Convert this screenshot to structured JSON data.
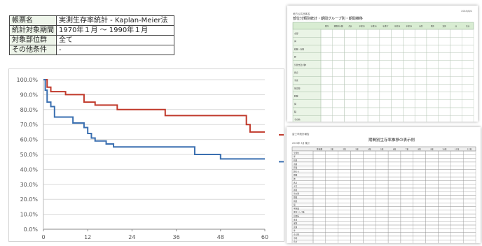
{
  "info_table": {
    "rows": [
      {
        "key": "帳票名",
        "value": "実測生存率統計 - Kaplan-Meier法"
      },
      {
        "key": "統計対象期間",
        "value": "1970年１月 〜 1990年１月"
      },
      {
        "key": "対象部位群",
        "value": "全て"
      },
      {
        "key": "その他条件",
        "value": "-"
      }
    ]
  },
  "chart_data": {
    "type": "line",
    "title": "",
    "xlabel": "",
    "ylabel": "",
    "xlim": [
      0,
      60
    ],
    "ylim": [
      0,
      100
    ],
    "x_ticks": [
      0,
      12,
      24,
      36,
      48,
      60
    ],
    "y_ticks": [
      "0.0%",
      "10.0%",
      "20.0%",
      "30.0%",
      "40.0%",
      "50.0%",
      "60.0%",
      "70.0%",
      "80.0%",
      "90.0%",
      "100.0%"
    ],
    "grid": true,
    "series": [
      {
        "color": "#c0392b",
        "step": true,
        "x": [
          0,
          1,
          2,
          6,
          11,
          14,
          20,
          33,
          55,
          56,
          60
        ],
        "y": [
          100,
          95,
          92,
          90,
          85,
          83,
          80,
          76,
          70,
          65,
          65
        ]
      },
      {
        "color": "#3a6fb0",
        "step": true,
        "x": [
          0,
          0.5,
          1,
          2,
          3,
          8,
          11,
          12,
          13,
          14,
          17,
          19,
          23,
          41,
          48,
          60
        ],
        "y": [
          100,
          93,
          85,
          82,
          75,
          71,
          68,
          64,
          61,
          59,
          57,
          55,
          55,
          50,
          47,
          47
        ]
      }
    ]
  },
  "doc1": {
    "header_small": "地方公共団体名",
    "title": "部位分類別統計・期間グループ別・期間推移",
    "corner_text": "2015/8/1",
    "column_headers": [
      "男性",
      "期間別人数",
      "合計",
      "平成25",
      "平成26",
      "平成27",
      "平成28",
      "平成29",
      "全体",
      "男性",
      "女性",
      "計",
      "合計"
    ],
    "row_labels": [
      "全部",
      "胃",
      "結腸・直腸",
      "肝",
      "気管支及び肺",
      "乳房",
      "子宮",
      "前立腺",
      "膀胱",
      "腎",
      "脳",
      "その他"
    ]
  },
  "doc2": {
    "header_small": "富士市統計報告",
    "title": "期間別生存率推移の表示例",
    "subline": "2015年  3月 集計",
    "column_headers": [
      "生存数",
      "1年",
      "2年",
      "3年",
      "4年",
      "5年",
      "6年",
      "7年",
      "8年",
      "9年",
      "10年",
      "11年",
      "12年"
    ],
    "row_labels": [
      "全部位",
      "胃",
      "結腸",
      "直腸",
      "肝臓",
      "胆のう",
      "膵臓",
      "肺",
      "乳房",
      "子宮",
      "卵巣",
      "前立腺",
      "腎臓",
      "膀胱",
      "脳",
      "甲状腺",
      "悪性リンパ腫",
      "白血病",
      "食道",
      "喉頭",
      "皮膚",
      "骨",
      "その他",
      "不明",
      "合計"
    ]
  },
  "colors": {
    "series_red": "#c0392b",
    "series_blue": "#3a6fb0",
    "table_header_green": "#d8ecd2",
    "label_bg": "#eef5ea"
  }
}
